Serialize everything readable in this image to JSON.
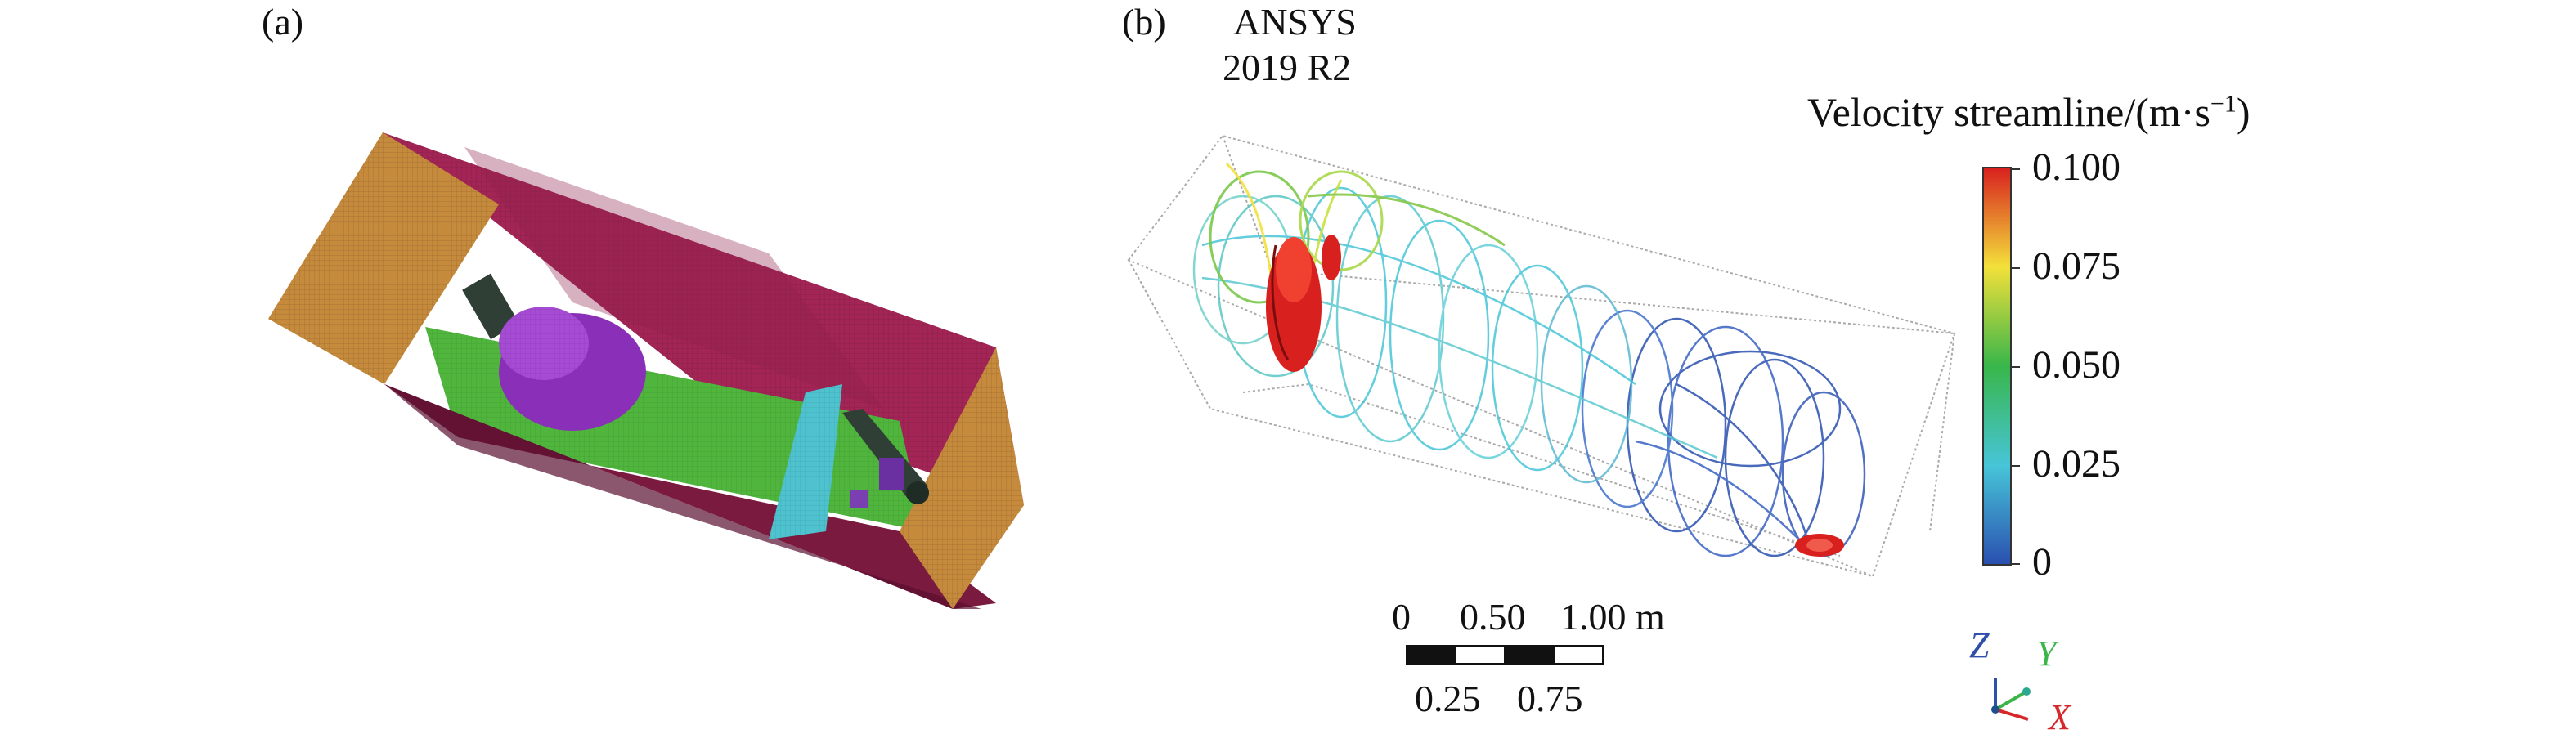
{
  "panel_a": {
    "label": "(a)",
    "colors": {
      "end_wall": "#c68a3c",
      "top_wall": "#a22555",
      "floor": "#4fb53d",
      "cylinder": "#8a2fb8",
      "block": "#4ec3cf",
      "pipe": "#2f3f36"
    }
  },
  "panel_b": {
    "label": "(b)",
    "software": [
      "ANSYS",
      "2019 R2"
    ],
    "legend": {
      "title": "Velocity streamline/(m·s",
      "title_sup": "−1",
      "title_close": ")",
      "ticks": [
        "0.100",
        "0.075",
        "0.050",
        "0.025",
        "0"
      ],
      "colors": [
        "#d8201f",
        "#f3e03a",
        "#38b64a",
        "#47c5d8",
        "#2a4fb0"
      ]
    },
    "scale_bar": {
      "top_labels": [
        "0",
        "0.50",
        "1.00 m"
      ],
      "bottom_labels": [
        "0.25",
        "0.75"
      ]
    },
    "axes_triad": {
      "z": "Z",
      "y": "Y",
      "x": "X",
      "z_color": "#2f4fa8",
      "y_color": "#3bb54a",
      "x_color": "#d6282a"
    }
  }
}
